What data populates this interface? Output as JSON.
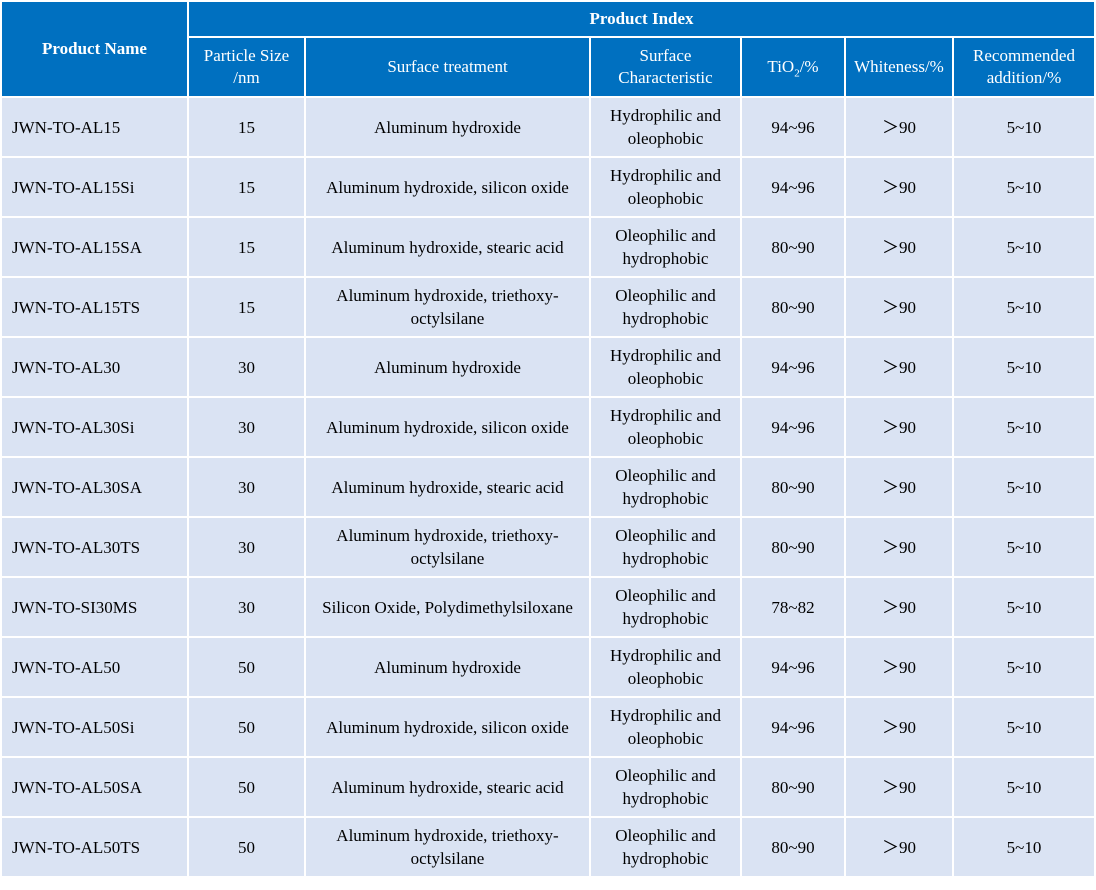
{
  "header": {
    "product_name": "Product Name",
    "product_index": "Product Index",
    "columns": {
      "particle_size_line1": "Particle Size",
      "particle_size_line2": "/nm",
      "surface_treatment": "Surface treatment",
      "surface_char_line1": "Surface",
      "surface_char_line2": "Characteristic",
      "tio2_prefix": "TiO",
      "tio2_sub": "2",
      "tio2_suffix": "/%",
      "whiteness": "Whiteness/%",
      "recommended_line1": "Recommended",
      "recommended_line2": "addition/%"
    }
  },
  "rows": [
    {
      "name": "JWN-TO-AL15",
      "size": "15",
      "treat1": "Aluminum hydroxide",
      "treat2": "",
      "char1": "Hydrophilic and",
      "char2": "oleophobic",
      "tio2": "94~96",
      "white": "＞90",
      "add": "5~10"
    },
    {
      "name": "JWN-TO-AL15Si",
      "size": "15",
      "treat1": "Aluminum hydroxide, silicon oxide",
      "treat2": "",
      "char1": "Hydrophilic and",
      "char2": "oleophobic",
      "tio2": "94~96",
      "white": "＞90",
      "add": "5~10"
    },
    {
      "name": "JWN-TO-AL15SA",
      "size": "15",
      "treat1": "Aluminum hydroxide, stearic acid",
      "treat2": "",
      "char1": "Oleophilic and",
      "char2": "hydrophobic",
      "tio2": "80~90",
      "white": "＞90",
      "add": "5~10"
    },
    {
      "name": "JWN-TO-AL15TS",
      "size": "15",
      "treat1": "Aluminum hydroxide, triethoxy-",
      "treat2": "octylsilane",
      "char1": "Oleophilic and",
      "char2": "hydrophobic",
      "tio2": "80~90",
      "white": "＞90",
      "add": "5~10"
    },
    {
      "name": "JWN-TO-AL30",
      "size": "30",
      "treat1": "Aluminum hydroxide",
      "treat2": "",
      "char1": "Hydrophilic and",
      "char2": "oleophobic",
      "tio2": "94~96",
      "white": "＞90",
      "add": "5~10"
    },
    {
      "name": "JWN-TO-AL30Si",
      "size": "30",
      "treat1": "Aluminum hydroxide, silicon oxide",
      "treat2": "",
      "char1": "Hydrophilic and",
      "char2": "oleophobic",
      "tio2": "94~96",
      "white": "＞90",
      "add": "5~10"
    },
    {
      "name": "JWN-TO-AL30SA",
      "size": "30",
      "treat1": "Aluminum hydroxide, stearic acid",
      "treat2": "",
      "char1": "Oleophilic and",
      "char2": "hydrophobic",
      "tio2": "80~90",
      "white": "＞90",
      "add": "5~10"
    },
    {
      "name": "JWN-TO-AL30TS",
      "size": "30",
      "treat1": "Aluminum hydroxide, triethoxy-",
      "treat2": "octylsilane",
      "char1": "Oleophilic and",
      "char2": "hydrophobic",
      "tio2": "80~90",
      "white": "＞90",
      "add": "5~10"
    },
    {
      "name": "JWN-TO-SI30MS",
      "size": "30",
      "treat1": "Silicon Oxide, Polydimethylsiloxane",
      "treat2": "",
      "char1": "Oleophilic and",
      "char2": "hydrophobic",
      "tio2": "78~82",
      "white": "＞90",
      "add": "5~10"
    },
    {
      "name": "JWN-TO-AL50",
      "size": "50",
      "treat1": "Aluminum hydroxide",
      "treat2": "",
      "char1": "Hydrophilic and",
      "char2": "oleophobic",
      "tio2": "94~96",
      "white": "＞90",
      "add": "5~10"
    },
    {
      "name": "JWN-TO-AL50Si",
      "size": "50",
      "treat1": "Aluminum hydroxide, silicon oxide",
      "treat2": "",
      "char1": "Hydrophilic and",
      "char2": "oleophobic",
      "tio2": "94~96",
      "white": "＞90",
      "add": "5~10"
    },
    {
      "name": "JWN-TO-AL50SA",
      "size": "50",
      "treat1": "Aluminum hydroxide, stearic acid",
      "treat2": "",
      "char1": "Oleophilic and",
      "char2": "hydrophobic",
      "tio2": "80~90",
      "white": "＞90",
      "add": "5~10"
    },
    {
      "name": "JWN-TO-AL50TS",
      "size": "50",
      "treat1": "Aluminum hydroxide, triethoxy-",
      "treat2": "octylsilane",
      "char1": "Oleophilic and",
      "char2": "hydrophobic",
      "tio2": "80~90",
      "white": "＞90",
      "add": "5~10"
    }
  ],
  "colors": {
    "header_bg": "#0070c0",
    "row_bg": "#dae3f3"
  }
}
